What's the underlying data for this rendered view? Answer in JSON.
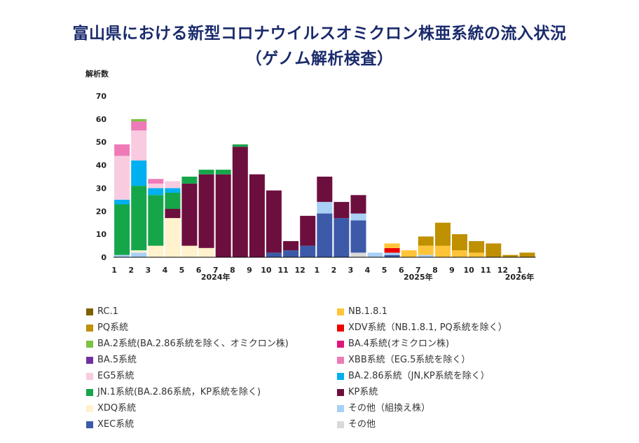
{
  "page": {
    "title_line1": "富山県における新型コロナウイルスオミクロン株亜系統の流入状況",
    "title_line2": "（ゲノム解析検査）"
  },
  "chart_data": {
    "type": "bar",
    "stacked": true,
    "title": "富山県における新型コロナウイルスオミクロン株亜系統の流入状況（ゲノム解析検査）",
    "ylabel": "解析数",
    "ylim": [
      0,
      70
    ],
    "yticks": [
      0,
      10,
      20,
      30,
      40,
      50,
      60,
      70
    ],
    "categories": [
      "1",
      "2",
      "3",
      "4",
      "5",
      "6",
      "7",
      "8",
      "9",
      "10",
      "11",
      "12",
      "1",
      "2",
      "3",
      "4",
      "5",
      "6",
      "7",
      "8",
      "9",
      "10",
      "11",
      "12",
      "1"
    ],
    "year_labels": [
      {
        "index": 6,
        "label": "2024年"
      },
      {
        "index": 18,
        "label": "2025年"
      },
      {
        "index": 24,
        "label": "2026年"
      }
    ],
    "stack_order": [
      "その他",
      "XEC系統",
      "その他（組換え株）",
      "XDQ系統",
      "KP系統",
      "JN.1系統(BA.2.86系統, KP系統を除く)",
      "BA.2.86系統（JN,KP系統を除く）",
      "EG5系統",
      "XBB系統（EG.5系統を除く）",
      "BA.2系統(BA.2.86系統を除く、オミクロン株)",
      "XDV系統（NB.1.8.1, PQ系統を除く）",
      "NB.1.8.1",
      "PQ系統",
      "RC.1"
    ],
    "series": [
      {
        "name": "RC.1",
        "color": "#7f6000",
        "values": [
          0,
          0,
          0,
          0,
          0,
          0,
          0,
          0,
          0,
          0,
          0,
          0,
          0,
          0,
          0,
          0,
          0,
          0,
          0,
          0,
          0,
          0,
          0,
          0,
          0
        ]
      },
      {
        "name": "PQ系統",
        "color": "#bf9000",
        "values": [
          0,
          0,
          0,
          0,
          0,
          0,
          0,
          0,
          0,
          0,
          0,
          0,
          0,
          0,
          0,
          0,
          0,
          0,
          4,
          10,
          7,
          5,
          6,
          1,
          2
        ]
      },
      {
        "name": "NB.1.8.1",
        "color": "#ffc439",
        "values": [
          0,
          0,
          0,
          0,
          0,
          0,
          0,
          0,
          0,
          0,
          0,
          0,
          0,
          0,
          0,
          0,
          2,
          3,
          4,
          5,
          3,
          2,
          0,
          0,
          0
        ]
      },
      {
        "name": "XDV系統（NB.1.8.1, PQ系統を除く）",
        "color": "#ee0000",
        "values": [
          0,
          0,
          0,
          0,
          0,
          0,
          0,
          0,
          0,
          0,
          0,
          0,
          0,
          0,
          0,
          0,
          2,
          0,
          0,
          0,
          0,
          0,
          0,
          0,
          0
        ]
      },
      {
        "name": "BA.2系統(BA.2.86系統を除く、オミクロン株)",
        "color": "#7dc243",
        "values": [
          0,
          1,
          0,
          0,
          0,
          0,
          0,
          0,
          0,
          0,
          0,
          0,
          0,
          0,
          0,
          0,
          0,
          0,
          0,
          0,
          0,
          0,
          0,
          0,
          0
        ]
      },
      {
        "name": "BA.4系統(オミクロン株)",
        "color": "#e0157a",
        "values": [
          0,
          0,
          0,
          0,
          0,
          0,
          0,
          0,
          0,
          0,
          0,
          0,
          0,
          0,
          0,
          0,
          0,
          0,
          0,
          0,
          0,
          0,
          0,
          0,
          0
        ]
      },
      {
        "name": "BA.5系統",
        "color": "#7030a0",
        "values": [
          0,
          0,
          0,
          0,
          0,
          0,
          0,
          0,
          0,
          0,
          0,
          0,
          0,
          0,
          0,
          0,
          0,
          0,
          0,
          0,
          0,
          0,
          0,
          0,
          0
        ]
      },
      {
        "name": "XBB系統（EG.5系統を除く）",
        "color": "#ee7ab8",
        "values": [
          5,
          4,
          2,
          0,
          0,
          0,
          0,
          0,
          0,
          0,
          0,
          0,
          0,
          0,
          0,
          0,
          0,
          0,
          0,
          0,
          0,
          0,
          0,
          0,
          0
        ]
      },
      {
        "name": "EG5系統",
        "color": "#f8cbe0",
        "values": [
          19,
          13,
          2,
          3,
          0,
          0,
          0,
          0,
          0,
          0,
          0,
          0,
          0,
          0,
          0,
          0,
          0,
          0,
          0,
          0,
          0,
          0,
          0,
          0,
          0
        ]
      },
      {
        "name": "BA.2.86系統（JN,KP系統を除く）",
        "color": "#00b0f0",
        "values": [
          2,
          11,
          3,
          2,
          0,
          0,
          0,
          0,
          0,
          0,
          0,
          0,
          0,
          0,
          0,
          0,
          0,
          0,
          0,
          0,
          0,
          0,
          0,
          0,
          0
        ]
      },
      {
        "name": "JN.1系統(BA.2.86系統, KP系統を除く)",
        "color": "#16a64a",
        "values": [
          22,
          28,
          22,
          7,
          3,
          2,
          2,
          1,
          0,
          0,
          0,
          0,
          0,
          0,
          0,
          0,
          0,
          0,
          0,
          0,
          0,
          0,
          0,
          0,
          0
        ]
      },
      {
        "name": "KP系統",
        "color": "#6d0f3e",
        "values": [
          0,
          0,
          0,
          4,
          27,
          32,
          36,
          48,
          36,
          27,
          4,
          13,
          11,
          7,
          8,
          0,
          0,
          0,
          0,
          0,
          0,
          0,
          0,
          0,
          0
        ]
      },
      {
        "name": "XDQ系統",
        "color": "#fff2cc",
        "values": [
          0,
          1,
          5,
          17,
          5,
          4,
          0,
          0,
          0,
          0,
          0,
          0,
          0,
          0,
          0,
          0,
          0,
          0,
          0,
          0,
          0,
          0,
          0,
          0,
          0
        ]
      },
      {
        "name": "その他（組換え株）",
        "color": "#a9d0f5",
        "values": [
          1,
          2,
          0,
          0,
          0,
          0,
          0,
          0,
          0,
          0,
          0,
          0,
          5,
          0,
          3,
          2,
          1,
          0,
          1,
          0,
          0,
          0,
          0,
          0,
          0
        ]
      },
      {
        "name": "XEC系統",
        "color": "#3d5aa8",
        "values": [
          0,
          0,
          0,
          0,
          0,
          0,
          0,
          0,
          0,
          2,
          3,
          5,
          19,
          17,
          14,
          0,
          1,
          0,
          0,
          0,
          0,
          0,
          0,
          0,
          0
        ]
      },
      {
        "name": "その他",
        "color": "#d9d9d9",
        "values": [
          0,
          0,
          0,
          0,
          0,
          0,
          0,
          0,
          0,
          0,
          0,
          0,
          0,
          0,
          2,
          0,
          0,
          0,
          0,
          0,
          0,
          0,
          0,
          0,
          0
        ]
      }
    ]
  },
  "legend": {
    "left": [
      {
        "label": "RC.1",
        "color": "#7f6000"
      },
      {
        "label": "PQ系統",
        "color": "#bf9000"
      },
      {
        "label": "BA.2系統(BA.2.86系統を除く、オミクロン株)",
        "color": "#7dc243"
      },
      {
        "label": "BA.5系統",
        "color": "#7030a0"
      },
      {
        "label": "EG5系統",
        "color": "#f8cbe0"
      },
      {
        "label": "JN.1系統(BA.2.86系統，KP系統を除く)",
        "color": "#16a64a"
      },
      {
        "label": "XDQ系統",
        "color": "#fff2cc"
      },
      {
        "label": "XEC系統",
        "color": "#3d5aa8"
      }
    ],
    "right": [
      {
        "label": "NB.1.8.1",
        "color": "#ffc439"
      },
      {
        "label": "XDV系統（NB.1.8.1, PQ系統を除く）",
        "color": "#ee0000"
      },
      {
        "label": "BA.4系統(オミクロン株)",
        "color": "#e0157a"
      },
      {
        "label": "XBB系統（EG.5系統を除く）",
        "color": "#ee7ab8"
      },
      {
        "label": "BA.2.86系統（JN,KP系統を除く）",
        "color": "#00b0f0"
      },
      {
        "label": "KP系統",
        "color": "#6d0f3e"
      },
      {
        "label": "その他（組換え株）",
        "color": "#a9d0f5"
      },
      {
        "label": "その他",
        "color": "#d9d9d9"
      }
    ]
  }
}
